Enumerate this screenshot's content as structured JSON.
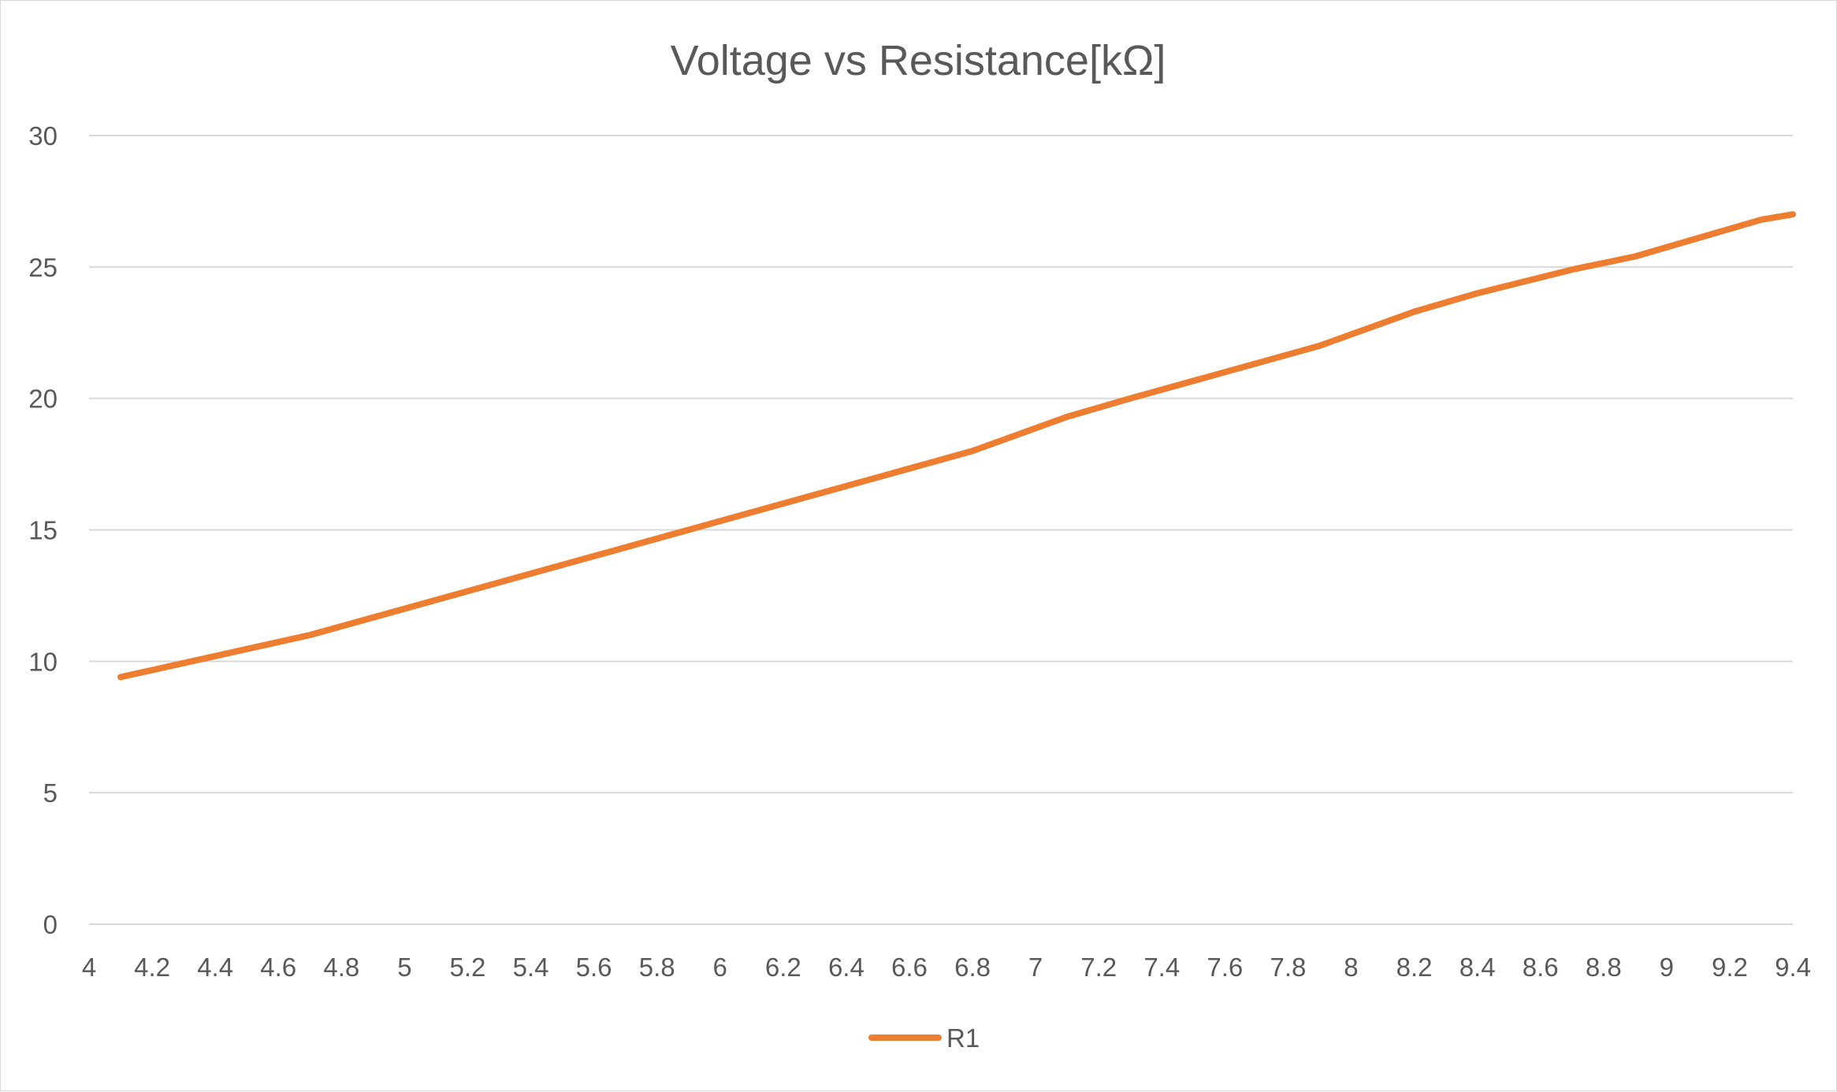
{
  "chart_data": {
    "type": "line",
    "title": "Voltage vs Resistance[kΩ]",
    "xlabel": "",
    "ylabel": "",
    "x": [
      4.1,
      4.4,
      4.7,
      5.0,
      5.3,
      5.6,
      5.9,
      6.2,
      6.5,
      6.8,
      7.1,
      7.3,
      7.6,
      7.9,
      8.2,
      8.4,
      8.7,
      8.9,
      9.1,
      9.3,
      9.4
    ],
    "series": [
      {
        "name": "R1",
        "color": "#ED7D31",
        "values": [
          9.4,
          10.2,
          11.0,
          12.0,
          13.0,
          14.0,
          15.0,
          16.0,
          17.0,
          18.0,
          19.3,
          20.0,
          21.0,
          22.0,
          23.3,
          24.0,
          24.9,
          25.4,
          26.1,
          26.8,
          27.0
        ]
      }
    ],
    "xlim": [
      4,
      9.4
    ],
    "ylim": [
      0,
      30
    ],
    "x_ticks": [
      "4",
      "4.2",
      "4.4",
      "4.6",
      "4.8",
      "5",
      "5.2",
      "5.4",
      "5.6",
      "5.8",
      "6",
      "6.2",
      "6.4",
      "6.6",
      "6.8",
      "7",
      "7.2",
      "7.4",
      "7.6",
      "7.8",
      "8",
      "8.2",
      "8.4",
      "8.6",
      "8.8",
      "9",
      "9.2",
      "9.4"
    ],
    "y_ticks": [
      "0",
      "5",
      "10",
      "15",
      "20",
      "25",
      "30"
    ],
    "grid": "horizontal",
    "legend_position": "bottom"
  }
}
